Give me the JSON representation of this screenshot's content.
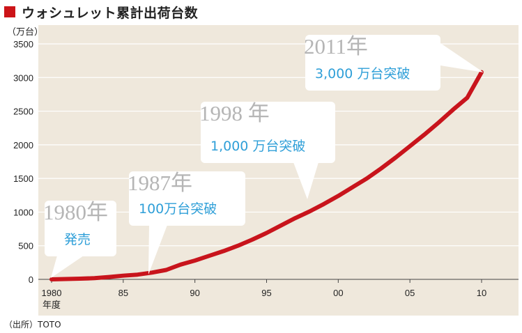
{
  "title": "ウォシュレット累計出荷台数",
  "source": "（出所）TOTO",
  "colors": {
    "line": "#c8141c",
    "background": "#efe8dc",
    "accent": "#cc1418",
    "annotation": "#2f9fd8",
    "year_text": "#b5b5b5"
  },
  "chart_data": {
    "type": "line",
    "title": "ウォシュレット累計出荷台数",
    "ylabel": "（万台）",
    "xlabel": "年度",
    "ylim": [
      0,
      3500
    ],
    "xlim": [
      1979,
      2012
    ],
    "yticks": [
      0,
      500,
      1000,
      1500,
      2000,
      2500,
      3000,
      3500
    ],
    "xticks": [
      {
        "value": 1980,
        "label": "1980"
      },
      {
        "value": 1985,
        "label": "85"
      },
      {
        "value": 1990,
        "label": "90"
      },
      {
        "value": 1995,
        "label": "95"
      },
      {
        "value": 2000,
        "label": "00"
      },
      {
        "value": 2005,
        "label": "05"
      },
      {
        "value": 2010,
        "label": "10"
      }
    ],
    "grid": "horizontal",
    "series": [
      {
        "x": [
          1980,
          1981,
          1982,
          1983,
          1984,
          1985,
          1986,
          1987,
          1988,
          1989,
          1990,
          1991,
          1992,
          1993,
          1994,
          1995,
          1996,
          1997,
          1998,
          1999,
          2000,
          2001,
          2002,
          2003,
          2004,
          2005,
          2006,
          2007,
          2008,
          2009,
          2010
        ],
        "values": [
          0,
          5,
          10,
          18,
          35,
          55,
          70,
          100,
          140,
          220,
          280,
          350,
          420,
          500,
          590,
          690,
          800,
          910,
          1010,
          1120,
          1240,
          1370,
          1500,
          1650,
          1810,
          1980,
          2150,
          2330,
          2520,
          2700,
          3080
        ]
      }
    ],
    "annotations": [
      {
        "x": 1980,
        "y": 0,
        "year": "1980年",
        "text": "発売"
      },
      {
        "x": 1987,
        "y": 100,
        "year": "1987年",
        "text": "100万台突破"
      },
      {
        "x": 1998,
        "y": 1000,
        "year": "1998 年",
        "text": "1,000 万台突破"
      },
      {
        "x": 2010,
        "y": 3080,
        "year": "2011年",
        "text": "3,000 万台突破"
      }
    ]
  }
}
